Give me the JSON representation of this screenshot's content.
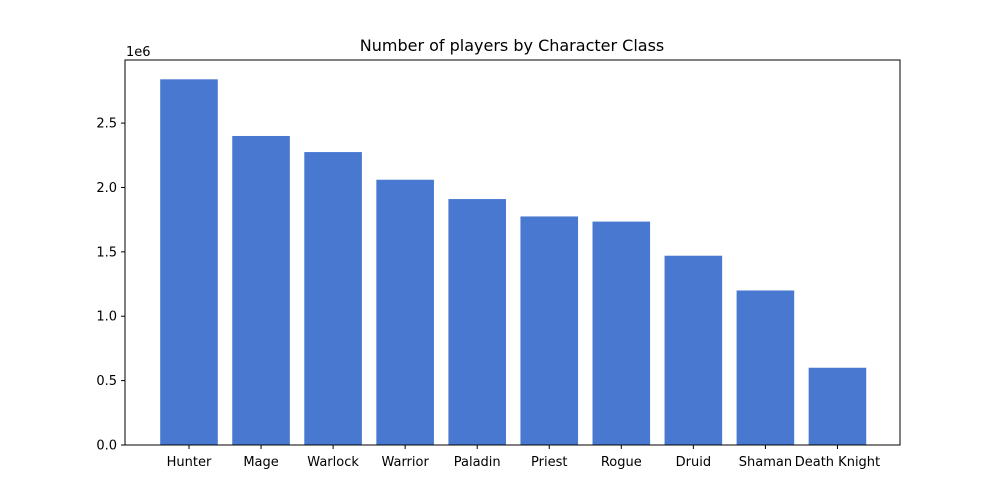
{
  "chart_data": {
    "type": "bar",
    "title": "Number of players by Character Class",
    "xlabel": "",
    "ylabel": "",
    "y_offset_label": "1e6",
    "categories": [
      "Hunter",
      "Mage",
      "Warlock",
      "Warrior",
      "Paladin",
      "Priest",
      "Rogue",
      "Druid",
      "Shaman",
      "Death Knight"
    ],
    "values": [
      2840000,
      2400000,
      2275000,
      2060000,
      1910000,
      1775000,
      1735000,
      1470000,
      1200000,
      600000
    ],
    "yticks": [
      0,
      500000,
      1000000,
      1500000,
      2000000,
      2500000
    ],
    "ytick_labels": [
      "0.0",
      "0.5",
      "1.0",
      "1.5",
      "2.0",
      "2.5"
    ],
    "ylim": [
      0,
      2990000
    ],
    "bar_color": "#4878d0",
    "grid": false,
    "legend": "none"
  }
}
